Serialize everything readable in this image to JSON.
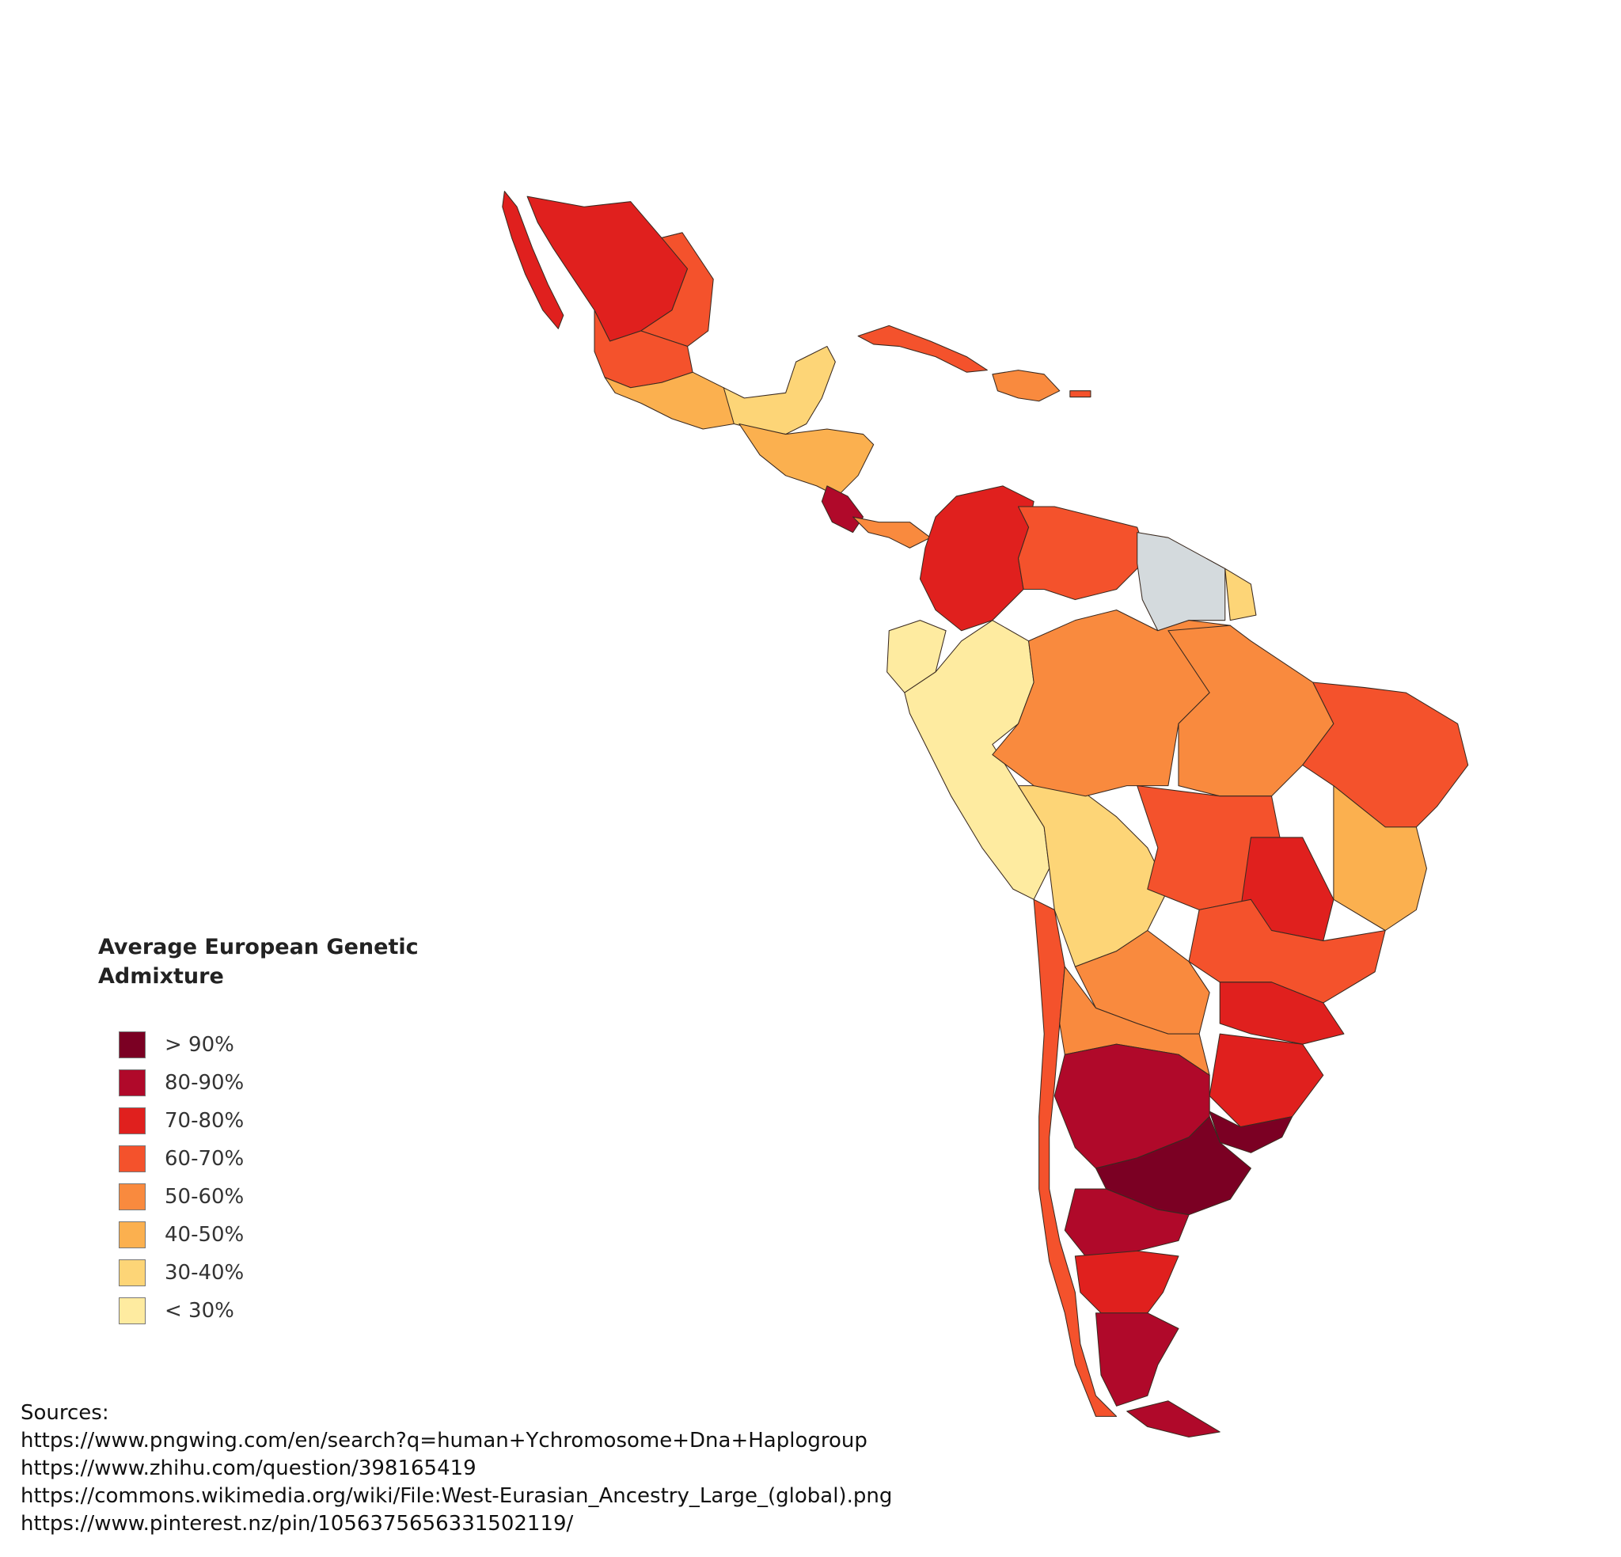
{
  "legend": {
    "title": "Average European Genetic Admixture",
    "items": [
      {
        "label": "> 90%",
        "color": "#7b0023"
      },
      {
        "label": "80-90%",
        "color": "#b0092a"
      },
      {
        "label": "70-80%",
        "color": "#e0201e"
      },
      {
        "label": "60-70%",
        "color": "#f4522c"
      },
      {
        "label": "50-60%",
        "color": "#f98a3e"
      },
      {
        "label": "40-50%",
        "color": "#fbb04f"
      },
      {
        "label": "30-40%",
        "color": "#fdd577"
      },
      {
        "label": "< 30%",
        "color": "#feeba0"
      }
    ]
  },
  "sources": {
    "heading": "Sources:",
    "links": [
      "https://www.pngwing.com/en/search?q=human+Ychromosome+Dna+Haplogroup",
      "https://www.zhihu.com/question/398165419",
      "https://commons.wikimedia.org/wiki/File:West-Eurasian_Ancestry_Large_(global).png",
      "https://www.pinterest.nz/pin/1056375656331502119/"
    ]
  }
}
